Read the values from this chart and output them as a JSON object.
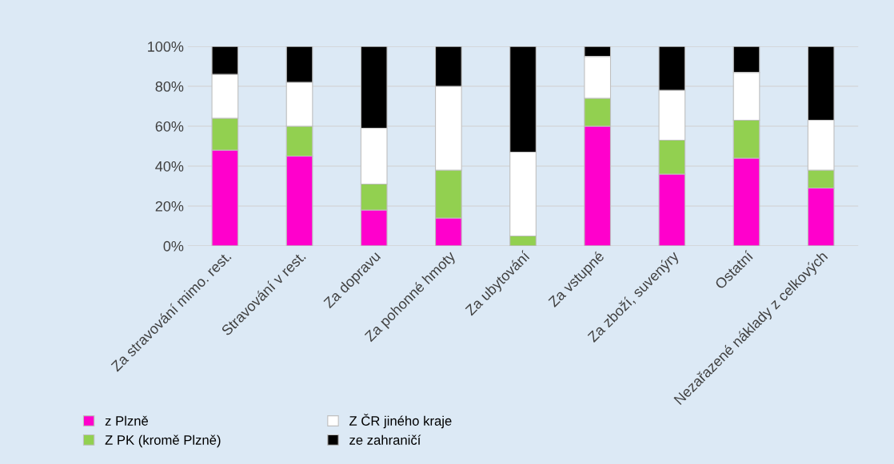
{
  "chart_data": {
    "type": "bar",
    "stacked": true,
    "categories": [
      "Za stravování mimo. rest.",
      "Stravování v rest.",
      "Za dopravu",
      "Za pohonné hmoty",
      "Za ubytování",
      "Za vstupné",
      "Za zboží, suvenýry",
      "Ostatní",
      "Nezařazené náklady z celkových"
    ],
    "series": [
      {
        "name": "z Plzně",
        "color": "#ff00cc",
        "values": [
          48,
          45,
          18,
          14,
          0,
          60,
          36,
          44,
          29
        ]
      },
      {
        "name": "Z PK (kromě Plzně)",
        "color": "#92d050",
        "values": [
          16,
          15,
          13,
          24,
          5,
          14,
          17,
          19,
          9
        ]
      },
      {
        "name": "Z ČR jiného kraje",
        "color": "#ffffff",
        "values": [
          22,
          22,
          28,
          42,
          42,
          21,
          25,
          24,
          25
        ]
      },
      {
        "name": "ze zahraničí",
        "color": "#000000",
        "values": [
          14,
          18,
          41,
          20,
          53,
          5,
          22,
          13,
          37
        ]
      }
    ],
    "ylim": [
      0,
      100
    ],
    "yticks": [
      {
        "value": 0,
        "label": "0%"
      },
      {
        "value": 20,
        "label": "20%"
      },
      {
        "value": 40,
        "label": "40%"
      },
      {
        "value": 60,
        "label": "60%"
      },
      {
        "value": 80,
        "label": "80%"
      },
      {
        "value": 100,
        "label": "100%"
      }
    ],
    "grid": "y",
    "legend": "bottom"
  }
}
